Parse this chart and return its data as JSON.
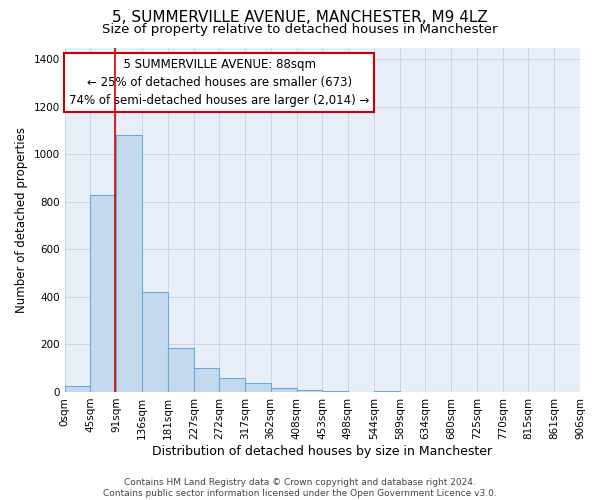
{
  "title": "5, SUMMERVILLE AVENUE, MANCHESTER, M9 4LZ",
  "subtitle": "Size of property relative to detached houses in Manchester",
  "xlabel": "Distribution of detached houses by size in Manchester",
  "ylabel": "Number of detached properties",
  "bar_color": "#c5d9ee",
  "bar_edge_color": "#6aabd6",
  "background_color": "#e8eef8",
  "grid_color": "#c8d0e0",
  "annotation_box_facecolor": "#ffffff",
  "annotation_border_color": "#cc0000",
  "vline_color": "#cc0000",
  "bin_edges": [
    0,
    45,
    91,
    136,
    181,
    227,
    272,
    317,
    362,
    408,
    453,
    498,
    544,
    589,
    634,
    680,
    725,
    770,
    815,
    861,
    906
  ],
  "bin_labels": [
    "0sqm",
    "45sqm",
    "91sqm",
    "136sqm",
    "181sqm",
    "227sqm",
    "272sqm",
    "317sqm",
    "362sqm",
    "408sqm",
    "453sqm",
    "498sqm",
    "544sqm",
    "589sqm",
    "634sqm",
    "680sqm",
    "725sqm",
    "770sqm",
    "815sqm",
    "861sqm",
    "906sqm"
  ],
  "counts": [
    25,
    830,
    1080,
    420,
    185,
    102,
    58,
    38,
    15,
    10,
    5,
    0,
    5,
    0,
    0,
    0,
    0,
    0,
    0,
    0
  ],
  "ylim": [
    0,
    1450
  ],
  "yticks": [
    0,
    200,
    400,
    600,
    800,
    1000,
    1200,
    1400
  ],
  "property_size": 88,
  "property_label": "5 SUMMERVILLE AVENUE: 88sqm",
  "annotation_line1": "← 25% of detached houses are smaller (673)",
  "annotation_line2": "74% of semi-detached houses are larger (2,014) →",
  "footer1": "Contains HM Land Registry data © Crown copyright and database right 2024.",
  "footer2": "Contains public sector information licensed under the Open Government Licence v3.0.",
  "title_fontsize": 11,
  "subtitle_fontsize": 9.5,
  "xlabel_fontsize": 9,
  "ylabel_fontsize": 8.5,
  "tick_fontsize": 7.5,
  "annotation_fontsize": 8.5,
  "footer_fontsize": 6.5
}
